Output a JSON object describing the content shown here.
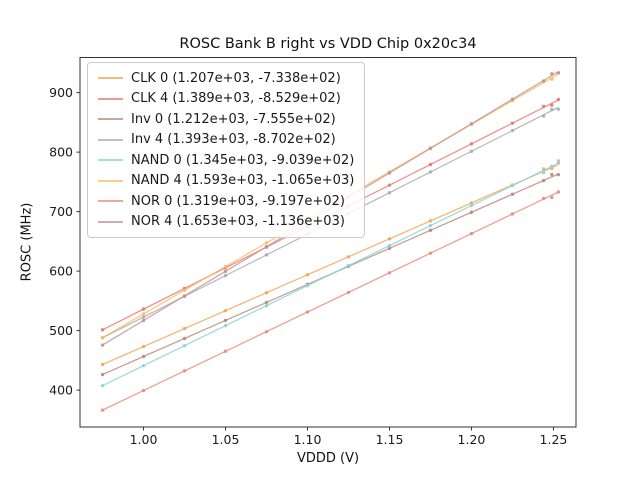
{
  "title": "ROSC Bank B right vs VDD Chip 0x20c34",
  "chart_data": {
    "type": "line",
    "title": "ROSC Bank B right vs VDD Chip 0x20c34",
    "xlabel": "VDDD (V)",
    "ylabel": "ROSC (MHz)",
    "xlim": [
      0.96125,
      1.26375
    ],
    "ylim": [
      338,
      959
    ],
    "xticks": [
      1.0,
      1.05,
      1.1,
      1.15,
      1.2,
      1.25
    ],
    "yticks": [
      400,
      500,
      600,
      700,
      800,
      900
    ],
    "x_samples": [
      0.975,
      1.0,
      1.025,
      1.05,
      1.075,
      1.1,
      1.125,
      1.15,
      1.175,
      1.2,
      1.225,
      1.244,
      1.249,
      1.253
    ],
    "x_line_range": [
      0.975,
      1.2525
    ],
    "legend_position": "upper-left",
    "grid": false,
    "series": [
      {
        "name": "CLK 0",
        "label": "CLK 0 (1.207e+03, -7.338e+02)",
        "slope": 1207,
        "intercept": -733.8,
        "color": "#f3a653"
      },
      {
        "name": "CLK 4",
        "label": "CLK 4 (1.389e+03, -8.529e+02)",
        "slope": 1389,
        "intercept": -852.9,
        "color": "#e8756b"
      },
      {
        "name": "Inv 0",
        "label": "Inv 0 (1.212e+03, -7.555e+02)",
        "slope": 1212,
        "intercept": -755.5,
        "color": "#b58a7a"
      },
      {
        "name": "Inv 4",
        "label": "Inv 4 (1.393e+03, -8.702e+02)",
        "slope": 1393,
        "intercept": -870.2,
        "color": "#ababab"
      },
      {
        "name": "NAND 0",
        "label": "NAND 0 (1.345e+03, -9.039e+02)",
        "slope": 1345,
        "intercept": -903.9,
        "color": "#8ad3d9"
      },
      {
        "name": "NAND 4",
        "label": "NAND 4 (1.593e+03, -1.065e+03)",
        "slope": 1593,
        "intercept": -1065.0,
        "color": "#f7bd62"
      },
      {
        "name": "NOR 0",
        "label": "NOR 0 (1.319e+03, -9.197e+02)",
        "slope": 1319,
        "intercept": -919.7,
        "color": "#e88a7e"
      },
      {
        "name": "NOR 4",
        "label": "NOR 4 (1.653e+03, -1.136e+03)",
        "slope": 1653,
        "intercept": -1136.0,
        "color": "#c49092"
      }
    ]
  }
}
